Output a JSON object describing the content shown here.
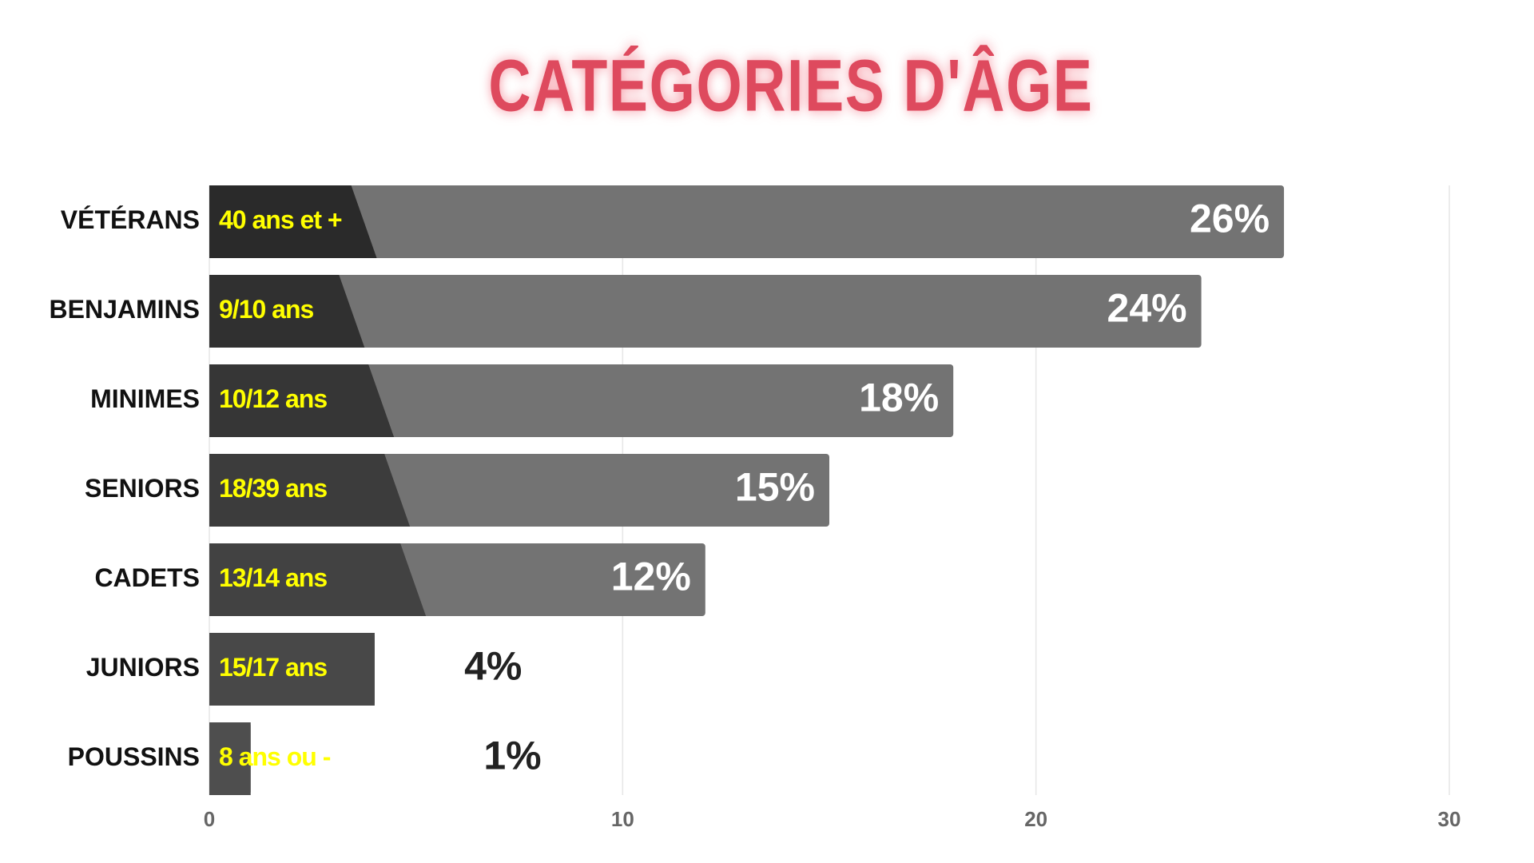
{
  "chart_data": {
    "type": "bar",
    "orientation": "horizontal",
    "title": "CATÉGORIES D'ÂGE",
    "categories": [
      "VÉTÉRANS",
      "BENJAMINS",
      "MINIMES",
      "SENIORS",
      "CADETS",
      "JUNIORS",
      "POUSSINS"
    ],
    "sublabels": [
      "40 ans et +",
      "9/10 ans",
      "10/12 ans",
      "18/39 ans",
      "13/14 ans",
      "15/17 ans",
      "8 ans ou -"
    ],
    "values": [
      26,
      24,
      18,
      15,
      12,
      4,
      1
    ],
    "value_labels": [
      "26%",
      "24%",
      "18%",
      "15%",
      "12%",
      "4%",
      "1%"
    ],
    "color": "#737373",
    "xlim": [
      0,
      30
    ],
    "xticks": [
      0,
      10,
      20,
      30
    ],
    "grid": true
  }
}
